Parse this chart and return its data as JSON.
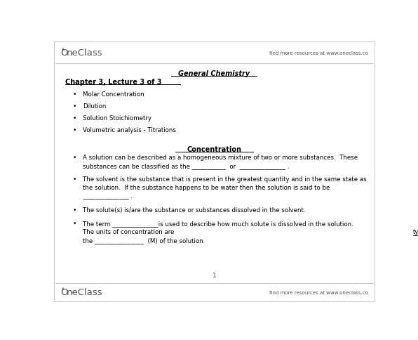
{
  "bg_color": "#ffffff",
  "border_color": "#cccccc",
  "oneclass_green": "#3a7a3a",
  "oneclass_text_color": "#555555",
  "find_more_text": "find more resources at www.oneclass.co",
  "title": "General Chemistry",
  "chapter_heading": "Chapter 3, Lecture 3 of 3",
  "bullet_points": [
    "Molar Concentration",
    "Dilution",
    "Solution Stoichiometry",
    "Volumetric analysis - Titrations"
  ],
  "section_heading": "Concentration",
  "body_bullets": [
    [
      "A solution can be described as a homogeneous mixture of two or more substances.  These",
      "substances can be classified as the ___________  or  _______________ ."
    ],
    [
      "The solvent is the substance that is present in the greatest quantity and in the same state as",
      "the solution.  If the substance happens to be water then the solution is said to be",
      "_______________ ."
    ],
    [
      "The solute(s) is/are the substance or substances dissolved in the solvent."
    ],
    [
      "The term _______________is used to describe how much solute is dissolved in the solution.",
      "The units of concentration are {typically} moles of solute per liter of solution and is referred to as",
      "the ________________  (M) of the solution."
    ]
  ],
  "page_number": "1",
  "font_size_title": 7.0,
  "font_size_chapter": 7.0,
  "font_size_body": 6.2,
  "font_size_oneclass": 9.5,
  "font_size_find": 5.0,
  "font_size_page": 6.5
}
